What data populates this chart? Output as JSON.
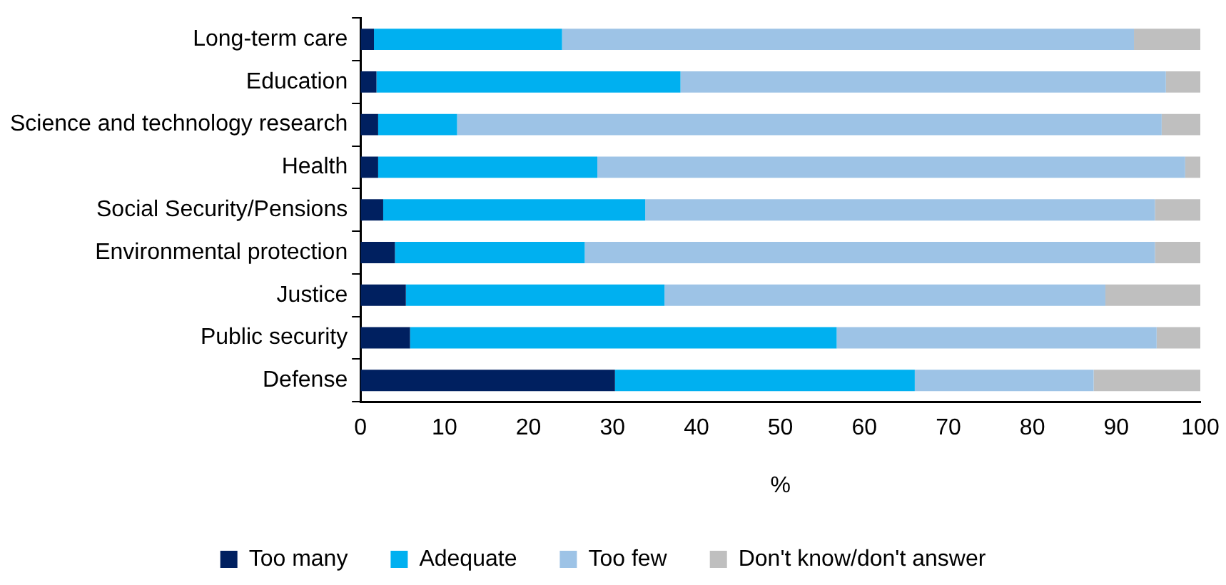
{
  "chart_data": {
    "type": "bar",
    "orientation": "horizontal",
    "stacked": true,
    "xlabel": "%",
    "categories": [
      "Long-term care",
      "Education",
      "Science and technology research",
      "Health",
      "Social Security/Pensions",
      "Environmental protection",
      "Justice",
      "Public security",
      "Defense"
    ],
    "series": [
      {
        "name": "Too many",
        "color": "#002060",
        "values": [
          1.6,
          1.9,
          2.1,
          2.1,
          2.7,
          4.1,
          5.4,
          5.9,
          30.3
        ]
      },
      {
        "name": "Adequate",
        "color": "#00b0f0",
        "values": [
          22.4,
          36.2,
          9.4,
          26.1,
          31.2,
          22.6,
          30.8,
          50.8,
          35.7
        ]
      },
      {
        "name": "Too few",
        "color": "#9dc3e6",
        "values": [
          68.1,
          57.8,
          83.9,
          70.0,
          60.7,
          67.9,
          52.5,
          38.1,
          21.3
        ]
      },
      {
        "name": "Don't know/don't answer",
        "color": "#bfbfbf",
        "values": [
          7.9,
          4.1,
          4.6,
          1.8,
          5.4,
          5.4,
          11.3,
          5.2,
          12.7
        ]
      }
    ],
    "xlim": [
      0,
      100
    ],
    "xticks": [
      0,
      10,
      20,
      30,
      40,
      50,
      60,
      70,
      80,
      90,
      100
    ],
    "grid": false,
    "legend": "bottom"
  }
}
